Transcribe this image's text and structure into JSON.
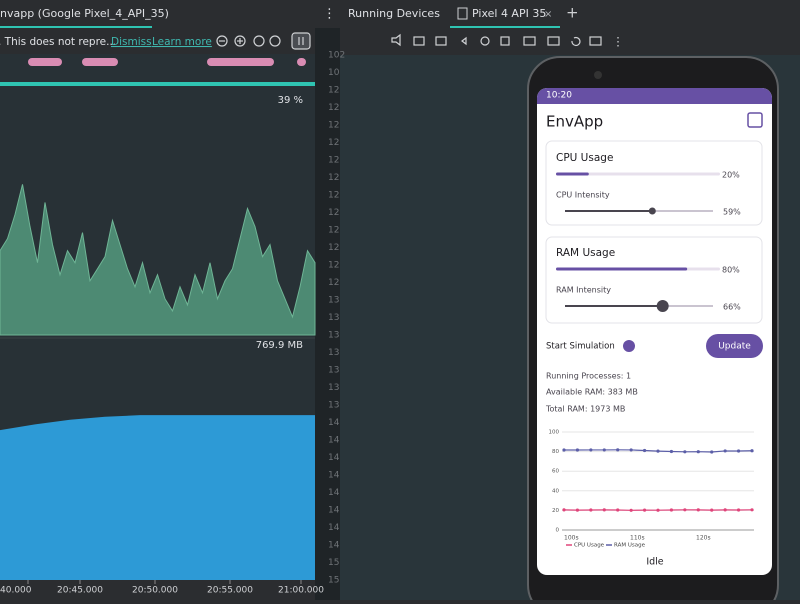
{
  "left_panel": {
    "tab": "nvapp (Google Pixel_4_API_35)",
    "notice": ". This does not repre...",
    "dismiss": "Dismiss",
    "learn_more": "Learn more",
    "cpu_max": {
      "value": 39,
      "label": "39 %"
    },
    "cpu_values": [
      14,
      16,
      20,
      25,
      18,
      12,
      22,
      15,
      10,
      14,
      12,
      17,
      9,
      11,
      13,
      19,
      15,
      11,
      8,
      12,
      7,
      10,
      6,
      4,
      8,
      5,
      10,
      7,
      12,
      6,
      9,
      11,
      16,
      21,
      18,
      13,
      15,
      9,
      6,
      3,
      8,
      14,
      12
    ],
    "memory_max": {
      "value": 769.9,
      "label": "769.9 MB"
    },
    "memory_values": [
      491,
      510,
      525,
      535,
      540,
      540,
      540,
      540,
      540,
      540
    ],
    "time_labels": [
      "40.000",
      "20:45.000",
      "20:50.000",
      "20:55.000",
      "21:00.000"
    ]
  },
  "line_numbers": [
    "102",
    "10",
    "12",
    "12",
    "12",
    "12",
    "12",
    "12",
    "12",
    "12",
    "12",
    "12",
    "12",
    "12",
    "13",
    "13",
    "13",
    "13",
    "13",
    "13",
    "13",
    "14",
    "14",
    "14",
    "14",
    "14",
    "14",
    "14",
    "14",
    "15",
    "15"
  ],
  "right_panel": {
    "tab": "Running Devices",
    "device_tab": "Pixel 4 API 35"
  },
  "phone": {
    "status_time": "10:20",
    "app_title": "EnvApp",
    "cpu_card": {
      "title": "CPU Usage",
      "usage": {
        "value": 20,
        "label": "20%"
      },
      "intensity_label": "CPU Intensity",
      "intensity": {
        "value": 59,
        "label": "59%"
      }
    },
    "ram_card": {
      "title": "RAM Usage",
      "usage": {
        "value": 80,
        "label": "80%"
      },
      "intensity_label": "RAM Intensity",
      "intensity": {
        "value": 66,
        "label": "66%"
      }
    },
    "start_simulation": "Start Simulation",
    "update": "Update",
    "running_processes": "Running Processes:  1",
    "available_ram": "Available RAM:  383 MB",
    "total_ram": "Total RAM:  1973 MB",
    "chart": {
      "type": "line",
      "ylim": [
        0,
        100
      ],
      "yticks": [
        0,
        20,
        40,
        60,
        80,
        100
      ],
      "x_labels": [
        "100s",
        "110s",
        "120s"
      ],
      "series": [
        {
          "name": "CPU Usage",
          "color": "#e0457b",
          "values": [
            20.5,
            20.3,
            20.4,
            20.5,
            20.4,
            20.1,
            20.3,
            20.2,
            20.4,
            20.6,
            20.5,
            20.3,
            20.5,
            20.4,
            20.6
          ]
        },
        {
          "name": "RAM Usage",
          "color": "#5c5fa8",
          "values": [
            81.6,
            81.6,
            81.7,
            81.7,
            81.8,
            81.7,
            81.1,
            80.5,
            80.1,
            79.8,
            79.9,
            79.6,
            80.7,
            80.6,
            80.9
          ]
        }
      ]
    },
    "status": "Idle"
  }
}
